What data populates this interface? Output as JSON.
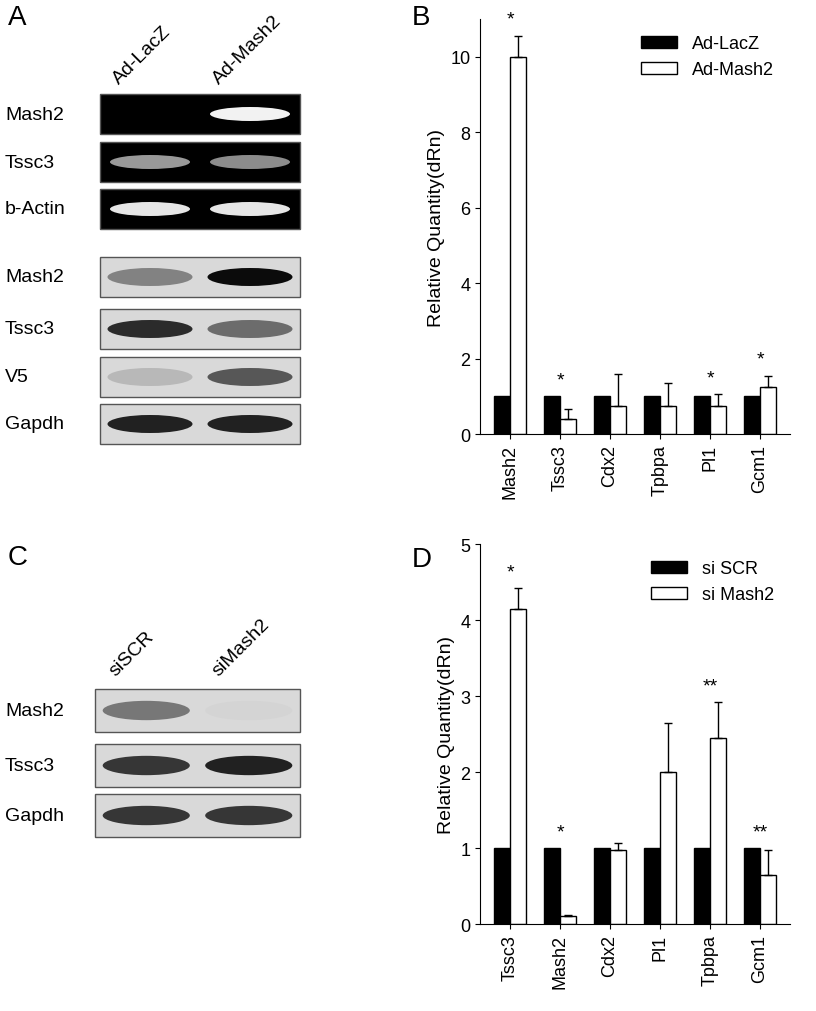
{
  "blots": [
    {
      "panel": "A",
      "lanes": [
        "Ad-LacZ",
        "Ad-Mash2"
      ],
      "rows": [
        {
          "label": "Mash2",
          "kind": "gel",
          "bands": [
            0.0,
            0.95
          ]
        },
        {
          "label": "Tssc3",
          "kind": "gel",
          "bands": [
            0.6,
            0.55
          ]
        },
        {
          "label": "b-Actin",
          "kind": "gel",
          "bands": [
            0.9,
            0.9
          ]
        },
        {
          "label": "Mash2",
          "kind": "western",
          "bands": [
            0.4,
            0.95
          ]
        },
        {
          "label": "Tssc3",
          "kind": "western",
          "bands": [
            0.8,
            0.5
          ]
        },
        {
          "label": "V5",
          "kind": "western",
          "bands": [
            0.15,
            0.6
          ]
        },
        {
          "label": "Gapdh",
          "kind": "western",
          "bands": [
            0.85,
            0.85
          ]
        }
      ]
    },
    {
      "panel": "C",
      "lanes": [
        "siSCR",
        "siMash2"
      ],
      "rows": [
        {
          "label": "Mash2",
          "kind": "western",
          "bands": [
            0.45,
            0.02
          ]
        },
        {
          "label": "Tssc3",
          "kind": "western",
          "bands": [
            0.75,
            0.85
          ]
        },
        {
          "label": "Gapdh",
          "kind": "western",
          "bands": [
            0.75,
            0.75
          ]
        }
      ]
    }
  ],
  "chart_data": [
    {
      "type": "bar",
      "panel": "B",
      "y_label": "Relative Quantity(dRn)",
      "categories": [
        "Mash2",
        "Tssc3",
        "Cdx2",
        "Tpbpa",
        "Pl1",
        "Gcm1"
      ],
      "series": [
        {
          "name": "Ad-LacZ",
          "color": "#000000",
          "values": [
            1,
            1,
            1,
            1,
            1,
            1
          ]
        },
        {
          "name": "Ad-Mash2",
          "color": "#ffffff",
          "values": [
            10.0,
            0.4,
            0.75,
            0.75,
            0.75,
            1.25
          ],
          "errors": [
            0.55,
            0.25,
            0.85,
            0.6,
            0.3,
            0.3
          ]
        }
      ],
      "significance": [
        "*",
        "*",
        null,
        null,
        "*",
        "*"
      ],
      "ylim": [
        0,
        11
      ],
      "yticks": [
        0,
        2,
        4,
        6,
        8,
        10
      ],
      "legend": "upper right",
      "grid": false
    },
    {
      "type": "bar",
      "panel": "D",
      "y_label": "Relative Quantity(dRn)",
      "categories": [
        "Tssc3",
        "Mash2",
        "Cdx2",
        "Pl1",
        "Tpbpa",
        "Gcm1"
      ],
      "series": [
        {
          "name": "si SCR",
          "color": "#000000",
          "values": [
            1,
            1,
            1,
            1,
            1,
            1
          ]
        },
        {
          "name": "si Mash2",
          "color": "#ffffff",
          "values": [
            4.15,
            0.1,
            0.98,
            2.0,
            2.45,
            0.65
          ],
          "errors": [
            0.27,
            0.02,
            0.08,
            0.65,
            0.47,
            0.32
          ]
        }
      ],
      "significance": [
        "*",
        "*",
        null,
        null,
        "**",
        "**"
      ],
      "ylim": [
        0,
        5
      ],
      "yticks": [
        0,
        1,
        2,
        3,
        4,
        5
      ],
      "legend": "upper right",
      "grid": false
    }
  ]
}
